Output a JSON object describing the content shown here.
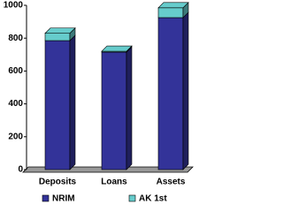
{
  "chart_data": {
    "type": "bar",
    "stacked": true,
    "categories": [
      "Deposits",
      "Loans",
      "Assets"
    ],
    "series": [
      {
        "name": "NRIM",
        "color": "#333399",
        "values": [
          785,
          715,
          925
        ]
      },
      {
        "name": "AK 1st",
        "color": "#66cccc",
        "values": [
          45,
          5,
          60
        ]
      }
    ],
    "ylim": [
      0,
      1000
    ],
    "yticks": [
      0,
      200,
      400,
      600,
      800,
      1000
    ],
    "grid": false,
    "legend": "bottom"
  }
}
